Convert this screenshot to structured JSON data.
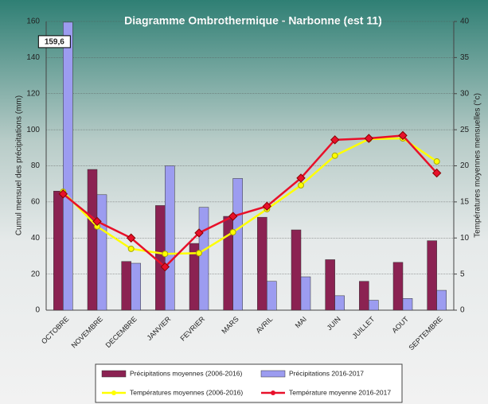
{
  "chart_data": {
    "type": "bar",
    "title": "Diagramme Ombrothermique - Narbonne (est 11)",
    "ylabel": "Cumul mensuel  des précipitations (mm)",
    "y2label": "Températures moyennes mensuelles (°c)",
    "categories": [
      "OCTOBRE",
      "NOVEMBRE",
      "DECEMBRE",
      "JANVIER",
      "FEVRIER",
      "MARS",
      "AVRIL",
      "MAI",
      "JUIN",
      "JUILLET",
      "AOUT",
      "SEPTEMBRE"
    ],
    "series": [
      {
        "name": "Précipitations moyennes (2006-2016)",
        "type": "bar",
        "color": "#8b2252",
        "values": [
          66,
          78,
          27,
          58,
          37,
          52,
          51.5,
          44.5,
          28,
          16,
          26.5,
          38.5
        ]
      },
      {
        "name": "Précipitations 2016-2017",
        "type": "bar",
        "color": "#9c9cf0",
        "values": [
          159.6,
          64,
          26,
          80,
          57,
          73,
          16,
          18.5,
          8,
          5.5,
          6.5,
          11
        ],
        "value_labels": [
          "159,6",
          null,
          null,
          null,
          null,
          null,
          null,
          null,
          null,
          null,
          null,
          null
        ]
      },
      {
        "name": "Températures moyennes (2006-2016)",
        "type": "line",
        "axis": "y2",
        "color": "#ffff00",
        "values": [
          16.4,
          11.6,
          8.5,
          7.8,
          7.9,
          10.8,
          14,
          17.3,
          21.4,
          23.7,
          23.8,
          20.6
        ]
      },
      {
        "name": "Température moyenne 2016-2017",
        "type": "line",
        "axis": "y2",
        "color": "#e8102a",
        "values": [
          16.1,
          12.3,
          10,
          6,
          10.7,
          13,
          14.4,
          18.3,
          23.6,
          23.8,
          24.2,
          19
        ]
      }
    ],
    "ylim": [
      0,
      160
    ],
    "yticks": [
      0,
      20,
      40,
      60,
      80,
      100,
      120,
      140,
      160
    ],
    "y2lim": [
      0,
      40
    ],
    "y2ticks": [
      0,
      5,
      10,
      15,
      20,
      25,
      30,
      35,
      40
    ],
    "grid": true
  }
}
